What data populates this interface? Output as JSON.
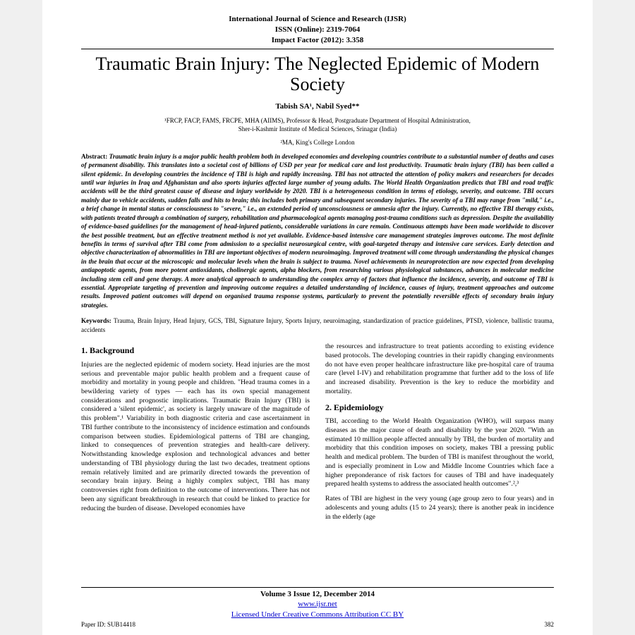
{
  "header": {
    "journal": "International Journal of Science and Research (IJSR)",
    "issn": "ISSN (Online): 2319-7064",
    "impact": "Impact Factor (2012): 3.358"
  },
  "title": "Traumatic Brain Injury: The Neglected Epidemic of Modern Society",
  "authors": "Tabish SA¹, Nabil Syed**",
  "affil1": "¹FRCP, FACP, FAMS, FRCPE, MHA (AIIMS), Professor & Head, Postgraduate Department of Hospital Administration,",
  "affil1b": "Sher-i-Kashmir Institute of Medical Sciences, Srinagar (India)",
  "affil2": "²MA, King's College London",
  "abstract": {
    "label": "Abstract: ",
    "body": "Traumatic brain injury is a major public health problem both in developed economies and developing countries contribute to a substantial number of deaths and cases of permanent disability. This translates into a societal cost of billions of USD per year for medical care and lost productivity. Traumatic brain injury (TBI) has been called a silent epidemic. In developing countries the incidence of TBI is high and rapidly increasing. TBI has not attracted the attention of policy makers and researchers for decades until war injuries in Iraq and Afghanistan and also sports injuries affected large number of young adults. The World Health Organization predicts that TBI and road traffic accidents will be the third greatest cause of disease and injury worldwide by 2020. TBI is a heterogeneous condition in terms of etiology, severity, and outcome. TBI occurs mainly due to vehicle accidents, sudden falls and hits to brain; this includes both primary and subsequent secondary injuries. The severity of a TBI may range from \"mild,\" i.e., a brief change in mental status or consciousness to \"severe,\" i.e., an extended period of unconsciousness or amnesia after the injury. Currently, no effective TBI therapy exists, with patients treated through a combination of surgery, rehabilitation and pharmacological agents managing post-trauma conditions such as depression. Despite the availability of evidence-based guidelines for the management of head-injured patients, considerable variations in care remain. Continuous attempts have been made worldwide to discover the best possible treatment, but an effective treatment method is not yet available. Evidence-based intensive care management strategies improves outcome. The most definite benefits in terms of survival after TBI come from admission to a specialist neurosurgical centre, with goal-targeted therapy and intensive care services. Early detection and objective characterization of abnormalities in TBI are important objectives of modern neuroimaging. Improved treatment will come through understanding the physical changes in the brain that occur at the microscopic and molecular levels when the brain is subject to trauma. Novel achievements in neuroprotection are now expected from developing antiapoptotic agents, from more potent antioxidants, cholinergic agents, alpha blockers, from researching various physiological substances, advances in molecular medicine including stem cell and gene therapy. A more analytical approach to understanding the complex array of factors that influence the incidence, severity, and outcome of TBI is essential. Appropriate targeting of prevention and improving outcome requires a detailed understanding of incidence, causes of injury, treatment approaches and outcome results. Improved patient outcomes will depend on organised trauma response systems, particularly to prevent the potentially reversible effects of secondary brain injury strategies."
  },
  "keywords": {
    "label": "Keywords: ",
    "body": "Trauma, Brain Injury, Head Injury, GCS, TBI, Signature Injury, Sports Injury, neuroimaging, standardization of practice guidelines, PTSD, violence, ballistic trauma, accidents"
  },
  "sections": {
    "s1_head": "1. Background",
    "s1_para1": "Injuries are the neglected epidemic of modern society. Head injuries are the most serious and preventable major public health problem and a frequent cause of morbidity and mortality in young people and children. \"Head trauma comes in a bewildering variety of types — each has its own special management considerations and prognostic implications. Traumatic Brain Injury (TBI) is considered a 'silent epidemic', as society is largely unaware of the magnitude of this problem\".¹ Variability in both diagnostic criteria and case ascertainment in TBI further contribute to the inconsistency of incidence estimation and confounds comparison between studies. Epidemiological patterns of TBI are changing, linked to consequences of prevention strategies and health-care delivery. Notwithstanding knowledge explosion and technological advances and better understanding of TBI physiology during the last two decades, treatment options remain relatively limited and are primarily directed towards the prevention of secondary brain injury. Being a highly complex subject, TBI has many controversies right from definition to the outcome of interventions. There has not been any significant breakthrough in research that could be linked to practice for reducing the burden of disease. Developed economies have",
    "s1_para2": "the resources and infrastructure to treat patients according to existing evidence based protocols. The developing countries in their rapidly changing environments do not have even proper healthcare infrastructure like pre-hospital care of trauma care (level I-IV) and rehabilitation programme that further add to the loss of life and increased disability. Prevention is the key to reduce the morbidity and mortality.",
    "s2_head": "2. Epidemiology",
    "s2_para1": "TBI, according to the World Health Organization (WHO), will surpass many diseases as the major cause of death and disability by the year 2020. \"With an estimated 10 million people affected annually by TBI, the burden of mortality and morbidity that this condition imposes on society, makes TBI a pressing public health and medical problem. The burden of TBI is manifest throughout the world, and is especially prominent in Low and Middle Income Countries which face a higher preponderance of risk factors for causes of TBI and have inadequately prepared health systems to address the associated health outcomes\".²,³",
    "s2_para2": "Rates of TBI are highest in the very young (age group zero to four years) and in adolescents and young adults (15 to 24 years); there is another peak in incidence in the elderly (age"
  },
  "footer": {
    "volume": "Volume 3 Issue 12, December 2014",
    "url": "www.ijsr.net",
    "license": "Licensed Under Creative Commons Attribution CC BY",
    "paperid": "Paper ID: SUB14418",
    "page": "382"
  }
}
